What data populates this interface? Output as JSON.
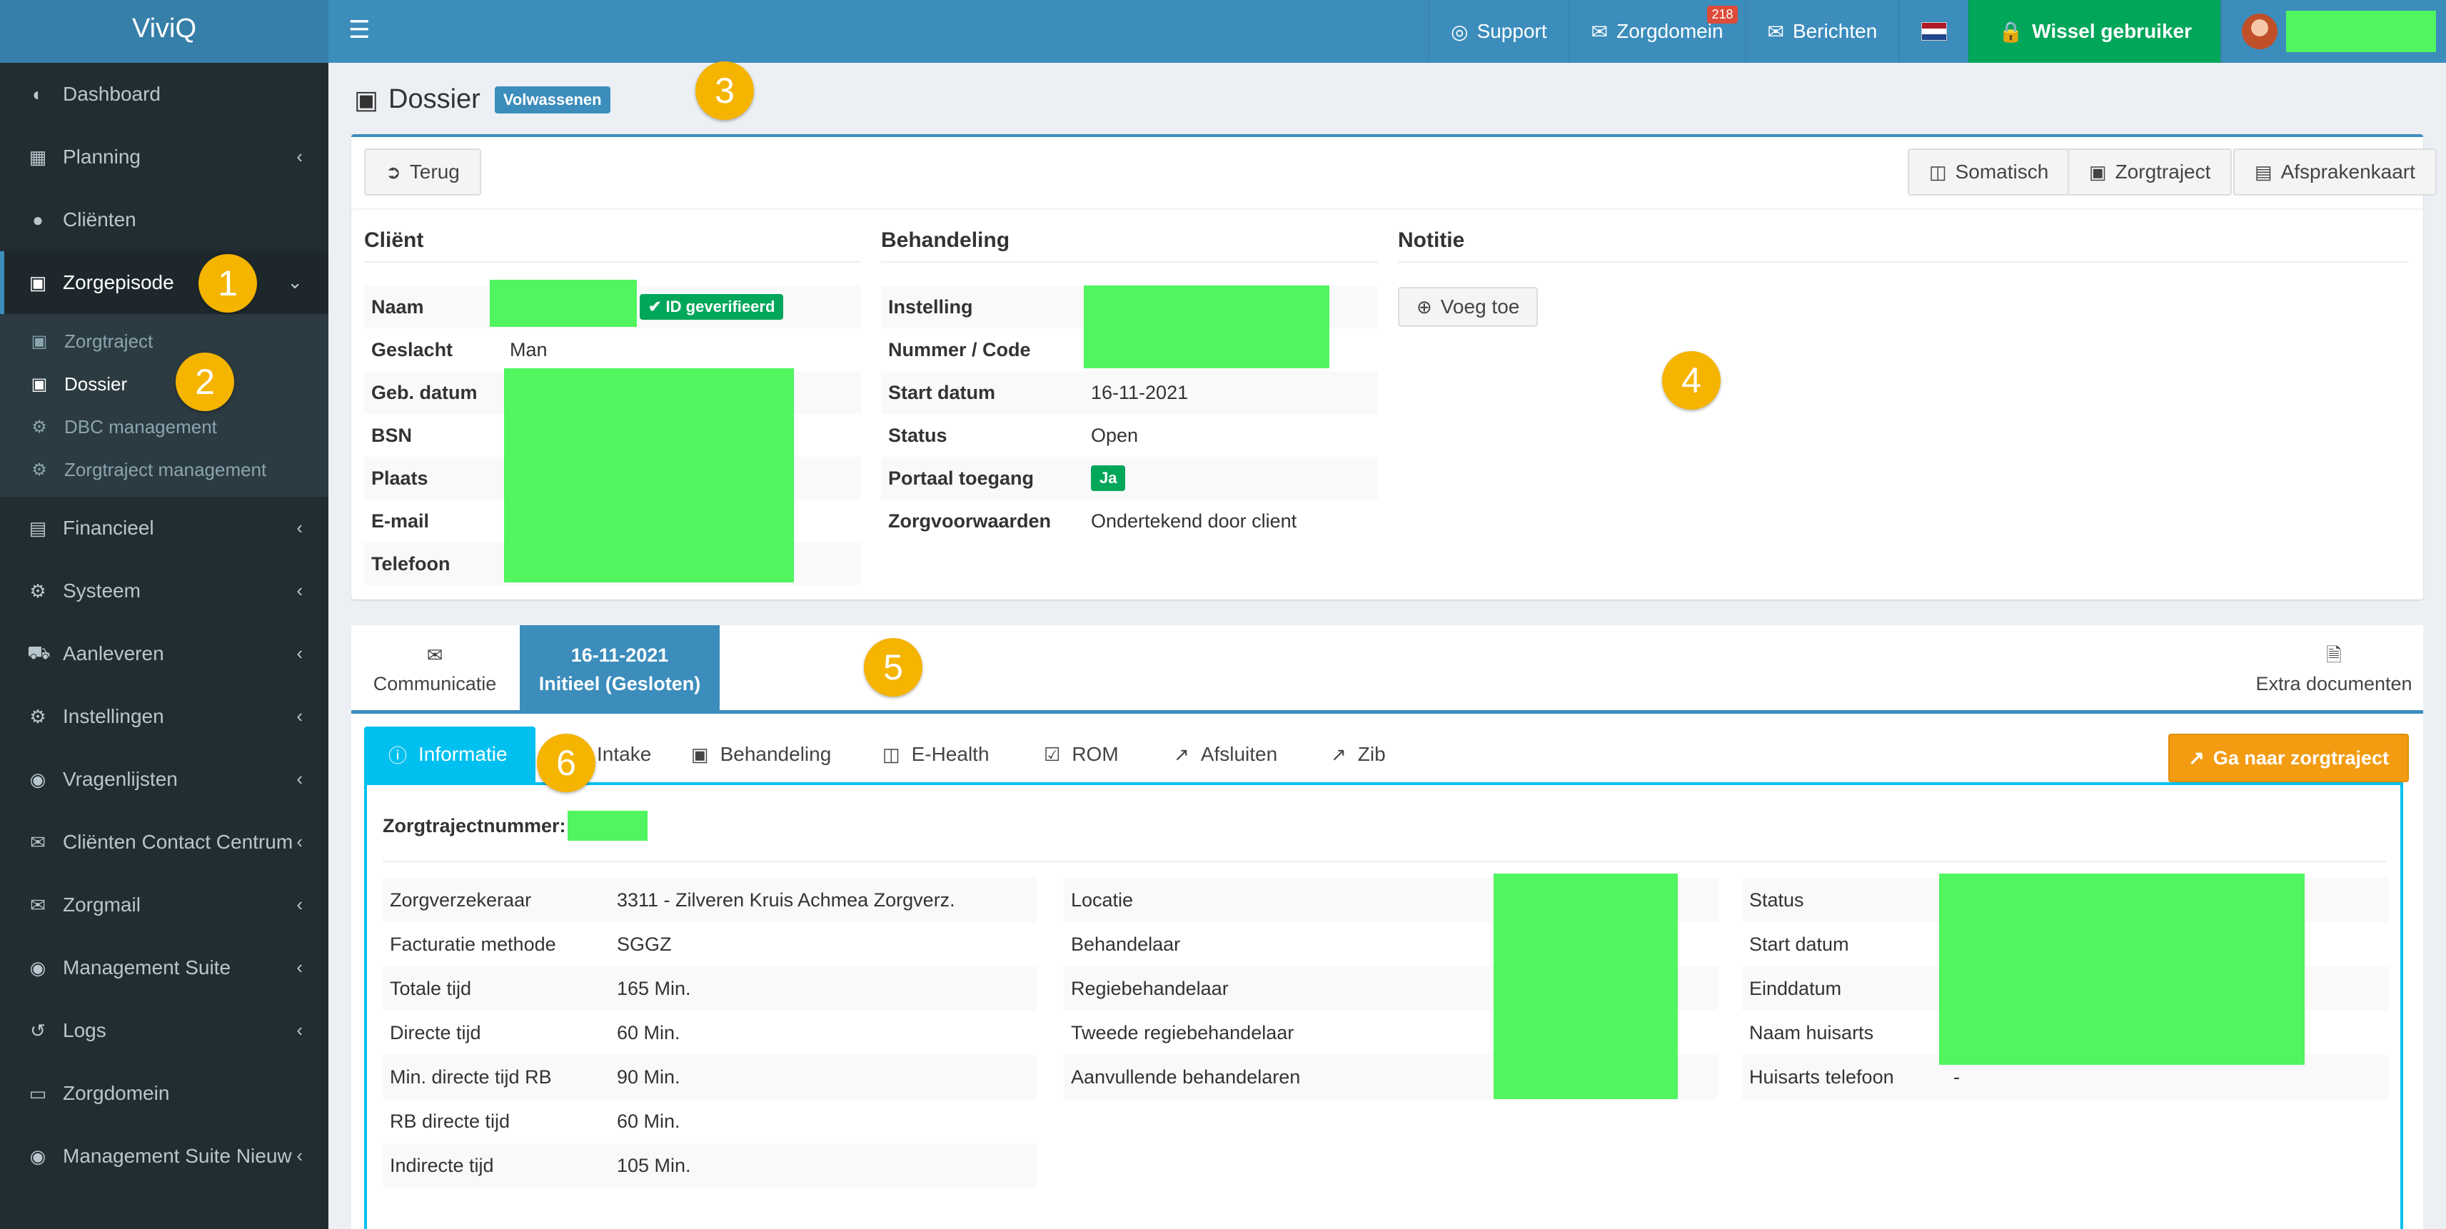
{
  "app": {
    "brand": "ViviQ"
  },
  "topnav": {
    "support": "Support",
    "zorgdomein": "Zorgdomein",
    "zorgdomein_count": "218",
    "berichten": "Berichten",
    "wissel": "Wissel gebruiker"
  },
  "sidebar": {
    "items": [
      {
        "label": "Dashboard",
        "icon": "dashboard-icon"
      },
      {
        "label": "Planning",
        "icon": "calendar-icon"
      },
      {
        "label": "Cliënten",
        "icon": "user-icon"
      },
      {
        "label": "Zorgepisode",
        "icon": "medkit-icon"
      },
      {
        "label": "Financieel",
        "icon": "book-icon"
      },
      {
        "label": "Systeem",
        "icon": "cogs-icon"
      },
      {
        "label": "Aanleveren",
        "icon": "truck-icon"
      },
      {
        "label": "Instellingen",
        "icon": "gear-icon"
      },
      {
        "label": "Vragenlijsten",
        "icon": "globe-icon"
      },
      {
        "label": "Cliënten Contact Centrum",
        "icon": "envelope-icon"
      },
      {
        "label": "Zorgmail",
        "icon": "envelope-icon"
      },
      {
        "label": "Management Suite",
        "icon": "globe-icon"
      },
      {
        "label": "Logs",
        "icon": "history-icon"
      },
      {
        "label": "Zorgdomein",
        "icon": "inbox-icon"
      },
      {
        "label": "Management Suite Nieuw",
        "icon": "globe-icon"
      }
    ],
    "sub": [
      {
        "label": "Zorgtraject"
      },
      {
        "label": "Dossier"
      },
      {
        "label": "DBC management"
      },
      {
        "label": "Zorgtraject management"
      }
    ]
  },
  "markers": [
    "1",
    "2",
    "3",
    "4",
    "5",
    "6"
  ],
  "page": {
    "title": "Dossier",
    "badge": "Volwassenen"
  },
  "toolbar": {
    "back": "Terug",
    "somatisch": "Somatisch",
    "zorgtraject": "Zorgtraject",
    "afsprakenkaart": "Afsprakenkaart"
  },
  "client": {
    "title": "Cliënt",
    "rows": [
      "Naam",
      "Geslacht",
      "Geb. datum",
      "BSN",
      "Plaats",
      "E-mail",
      "Telefoon"
    ],
    "geslacht": "Man",
    "id_badge": "ID geverifieerd"
  },
  "behandeling": {
    "title": "Behandeling",
    "rows": [
      {
        "k": "Instelling",
        "v": ""
      },
      {
        "k": "Nummer / Code",
        "v": ""
      },
      {
        "k": "Start datum",
        "v": "16-11-2021"
      },
      {
        "k": "Status",
        "v": "Open"
      },
      {
        "k": "Portaal toegang",
        "v": ""
      },
      {
        "k": "Zorgvoorwaarden",
        "v": "Ondertekend door client"
      }
    ],
    "portaal": "Ja"
  },
  "notitie": {
    "title": "Notitie",
    "add": "Voeg toe"
  },
  "tabs": {
    "communicatie": "Communicatie",
    "active_date": "16-11-2021",
    "active_label": "Initieel (Gesloten)",
    "extra": "Extra documenten"
  },
  "subtabs": {
    "items": [
      "Informatie",
      "Intake",
      "Behandeling",
      "E-Health",
      "ROM",
      "Afsluiten",
      "Zib"
    ],
    "goto": "Ga naar zorgtraject"
  },
  "info": {
    "zorgtrajectnummer": "Zorgtrajectnummer:",
    "col1": [
      {
        "k": "Zorgverzekeraar",
        "v": "3311 - Zilveren Kruis Achmea Zorgverz."
      },
      {
        "k": "Facturatie methode",
        "v": "SGGZ"
      },
      {
        "k": "Totale tijd",
        "v": "165 Min."
      },
      {
        "k": "Directe tijd",
        "v": "60 Min."
      },
      {
        "k": "Min. directe tijd RB",
        "v": "90 Min."
      },
      {
        "k": "RB directe tijd",
        "v": "60 Min."
      },
      {
        "k": "Indirecte tijd",
        "v": "105 Min."
      }
    ],
    "col2": [
      "Locatie",
      "Behandelaar",
      "Regiebehandelaar",
      "Tweede regiebehandelaar",
      "Aanvullende behandelaren"
    ],
    "col3": [
      {
        "k": "Status",
        "v": ""
      },
      {
        "k": "Start datum",
        "v": ""
      },
      {
        "k": "Einddatum",
        "v": ""
      },
      {
        "k": "Naam huisarts",
        "v": ""
      },
      {
        "k": "Huisarts telefoon",
        "v": "-"
      }
    ]
  }
}
